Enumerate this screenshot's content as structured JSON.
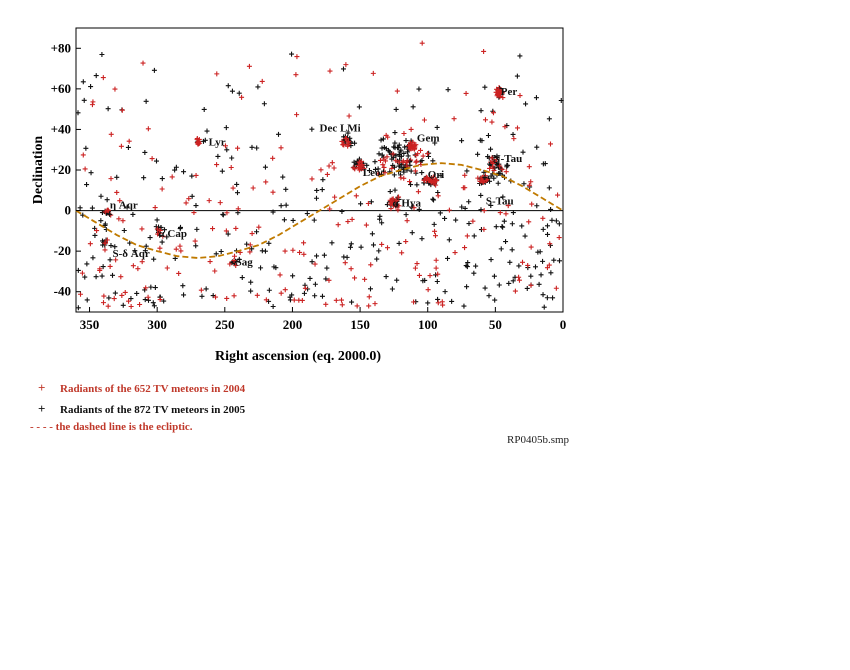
{
  "chart_data": {
    "type": "scatter",
    "title": "",
    "xlabel": "Right ascension (eq. 2000.0)",
    "ylabel": "Declination",
    "xlim": [
      360,
      0
    ],
    "ylim": [
      -50,
      90
    ],
    "x_reversed": true,
    "xticks": [
      350,
      300,
      250,
      200,
      150,
      100,
      50,
      0
    ],
    "yticks": [
      -40,
      -20,
      0,
      20,
      40,
      60,
      80
    ],
    "ytick_labels": [
      "-40",
      "-20",
      "0",
      "+20",
      "+40",
      "+60",
      "+80"
    ],
    "grid": false,
    "reference_line": {
      "y": 0,
      "style": "solid"
    },
    "ecliptic": {
      "style": "dashed",
      "color": "#c07a00",
      "ra": [
        360,
        345,
        330,
        315,
        300,
        285,
        270,
        255,
        240,
        225,
        210,
        195,
        180,
        165,
        150,
        135,
        120,
        105,
        90,
        75,
        60,
        45,
        30,
        15,
        0
      ],
      "dec": [
        0,
        -6,
        -12,
        -17,
        -20,
        -22.5,
        -23.4,
        -22.5,
        -20,
        -17,
        -12,
        -6,
        0,
        6,
        12,
        17,
        20,
        22.5,
        23.4,
        22.5,
        20,
        17,
        12,
        6,
        0
      ]
    },
    "annotations": [
      {
        "text": "Per",
        "x": 46,
        "y": 59
      },
      {
        "text": "Lyr",
        "x": 262,
        "y": 34
      },
      {
        "text": "Dec LMi",
        "x": 180,
        "y": 41
      },
      {
        "text": "Gem",
        "x": 108,
        "y": 36
      },
      {
        "text": "N-Tau",
        "x": 52,
        "y": 26
      },
      {
        "text": "Leo",
        "x": 148,
        "y": 19
      },
      {
        "text": "Ori",
        "x": 100,
        "y": 18
      },
      {
        "text": "S-Tau",
        "x": 57,
        "y": 5
      },
      {
        "text": "η Aqr",
        "x": 335,
        "y": 3
      },
      {
        "text": "α Hya",
        "x": 126,
        "y": 4
      },
      {
        "text": "α Cap",
        "x": 299,
        "y": -11
      },
      {
        "text": "S-δ Aqr",
        "x": 333,
        "y": -21
      },
      {
        "text": "Sag",
        "x": 242,
        "y": -25
      }
    ],
    "clusters": [
      {
        "x": 47,
        "y": 58,
        "rx": 4,
        "ry": 3,
        "red": 24,
        "black": 8
      },
      {
        "x": 112,
        "y": 32,
        "rx": 4,
        "ry": 3,
        "red": 20,
        "black": 6
      },
      {
        "x": 270,
        "y": 34,
        "rx": 2,
        "ry": 2,
        "red": 10,
        "black": 2
      },
      {
        "x": 152,
        "y": 22,
        "rx": 7,
        "ry": 4,
        "red": 16,
        "black": 22
      },
      {
        "x": 160,
        "y": 34,
        "rx": 6,
        "ry": 5,
        "red": 12,
        "black": 14
      },
      {
        "x": 98,
        "y": 15,
        "rx": 9,
        "ry": 3,
        "red": 22,
        "black": 20
      },
      {
        "x": 58,
        "y": 15,
        "rx": 8,
        "ry": 3,
        "red": 10,
        "black": 22
      },
      {
        "x": 125,
        "y": 4,
        "rx": 6,
        "ry": 4,
        "red": 12,
        "black": 14
      },
      {
        "x": 337,
        "y": -1,
        "rx": 4,
        "ry": 2,
        "red": 4,
        "black": 10
      },
      {
        "x": 339,
        "y": -16,
        "rx": 3,
        "ry": 2,
        "red": 3,
        "black": 8
      },
      {
        "x": 300,
        "y": -10,
        "rx": 5,
        "ry": 3,
        "red": 4,
        "black": 8
      },
      {
        "x": 243,
        "y": -25,
        "rx": 5,
        "ry": 3,
        "red": 4,
        "black": 6
      },
      {
        "x": 120,
        "y": 25,
        "rx": 25,
        "ry": 14,
        "red": 30,
        "black": 60
      },
      {
        "x": 50,
        "y": 22,
        "rx": 12,
        "ry": 10,
        "red": 10,
        "black": 30
      }
    ],
    "scatter_spread": {
      "red_count": 220,
      "black_count": 330
    },
    "series": [
      {
        "name": "Radiants of the 652 TV meteors in 2004",
        "color": "#cc2222",
        "marker": "+"
      },
      {
        "name": "Radiants of the 872 TV meteors in 2005",
        "color": "#111111",
        "marker": "+"
      }
    ]
  },
  "legend": {
    "items": [
      {
        "symbol": "+",
        "text": "Radiants of the 652 TV meteors in 2004",
        "color": "#c0392b"
      },
      {
        "symbol": "+",
        "text": "Radiants of the 872 TV meteors in 2005",
        "color": "#111111"
      },
      {
        "symbol": "- - - -",
        "text": "the dashed line is the ecliptic.",
        "color": "#c0392b"
      }
    ]
  },
  "footer_ref": "RP0405b.smp"
}
